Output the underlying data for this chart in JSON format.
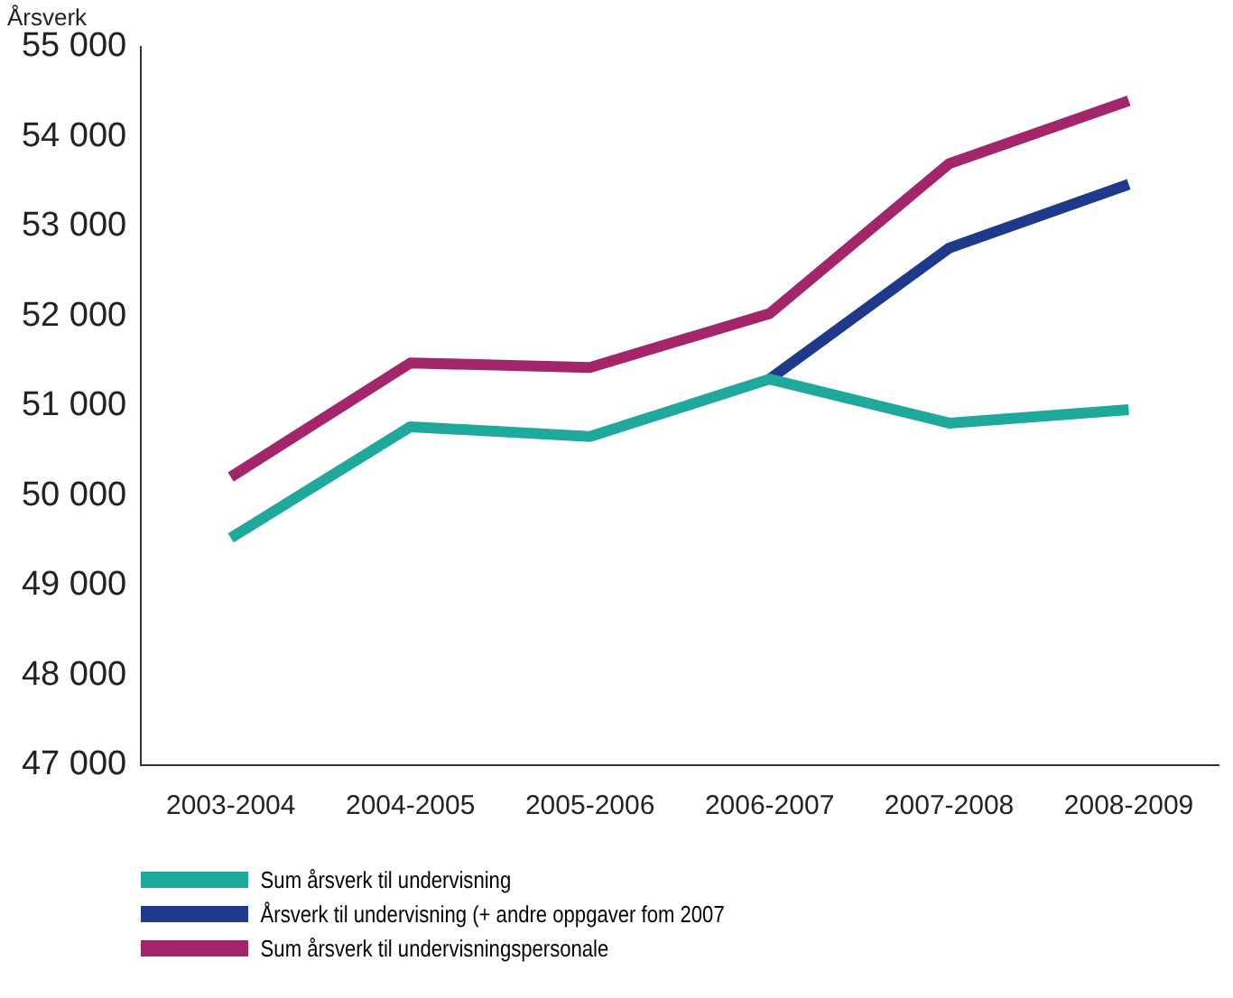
{
  "chart_data": {
    "type": "line",
    "ylabel": "Årsverk",
    "categories": [
      "2003-2004",
      "2004-2005",
      "2005-2006",
      "2006-2007",
      "2007-2008",
      "2008-2009"
    ],
    "series": [
      {
        "name": "Sum årsverk til undervisning",
        "color": "#1fa89c",
        "values": [
          49530,
          50770,
          50660,
          51300,
          50810,
          50960
        ]
      },
      {
        "name": "Årsverk til undervisning (+ andre oppgaver fom 2007",
        "color": "#1f3a8a",
        "values": [
          null,
          null,
          null,
          51300,
          52760,
          53470
        ]
      },
      {
        "name": "Sum årsverk til undervisningspersonale",
        "color": "#a3266b",
        "values": [
          50210,
          51480,
          51430,
          52030,
          53700,
          54400
        ]
      }
    ],
    "ylim": [
      47000,
      55000
    ],
    "yticks": [
      {
        "value": 47000,
        "label": "47 000"
      },
      {
        "value": 48000,
        "label": "48 000"
      },
      {
        "value": 49000,
        "label": "49 000"
      },
      {
        "value": 50000,
        "label": "50 000"
      },
      {
        "value": 51000,
        "label": "51 000"
      },
      {
        "value": 52000,
        "label": "52 000"
      },
      {
        "value": 53000,
        "label": "53 000"
      },
      {
        "value": 54000,
        "label": "54 000"
      },
      {
        "value": 55000,
        "label": "55 000"
      }
    ],
    "grid": false,
    "legend": "bottom",
    "marker": "none",
    "line_style": "solid"
  }
}
